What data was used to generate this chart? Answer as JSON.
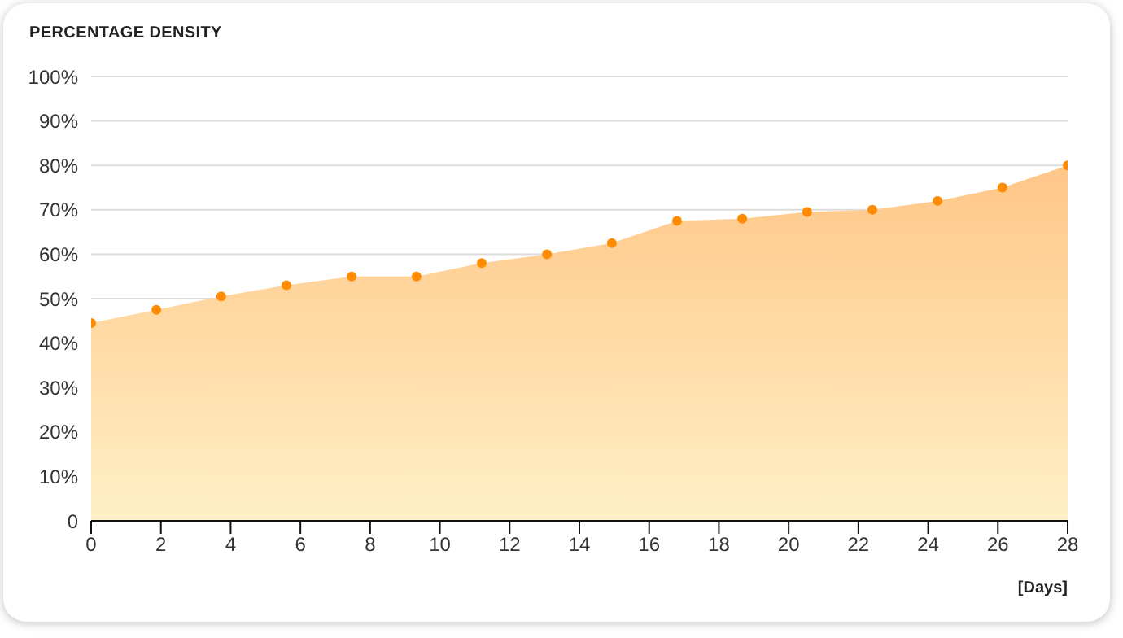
{
  "chart_data": {
    "type": "area",
    "title": "PERCENTAGE DENSITY",
    "xlabel": "[Days]",
    "x": [
      0,
      1.87,
      3.73,
      5.6,
      7.47,
      9.33,
      11.2,
      13.07,
      14.93,
      16.8,
      18.67,
      20.53,
      22.4,
      24.27,
      26.13,
      28
    ],
    "series": [
      {
        "color": "#ff8c00",
        "values": [
          44.5,
          47.5,
          50.5,
          53,
          55,
          55,
          58,
          60,
          62.5,
          67.5,
          68,
          69.5,
          70,
          72,
          75,
          80
        ]
      }
    ],
    "xlim": [
      0,
      28
    ],
    "xticks": [
      0,
      2,
      4,
      6,
      8,
      10,
      12,
      14,
      16,
      18,
      20,
      22,
      24,
      26,
      28
    ],
    "ylim": [
      0,
      100
    ],
    "yticks": [
      {
        "value": 0,
        "label": "0"
      },
      {
        "value": 10,
        "label": "10%"
      },
      {
        "value": 20,
        "label": "20%"
      },
      {
        "value": 30,
        "label": "30%"
      },
      {
        "value": 40,
        "label": "40%"
      },
      {
        "value": 50,
        "label": "50%"
      },
      {
        "value": 60,
        "label": "60%"
      },
      {
        "value": 70,
        "label": "70%"
      },
      {
        "value": 80,
        "label": "80%"
      },
      {
        "value": 90,
        "label": "90%"
      },
      {
        "value": 100,
        "label": "100%"
      }
    ],
    "grid": "y",
    "marker": "circle",
    "legend": false
  }
}
